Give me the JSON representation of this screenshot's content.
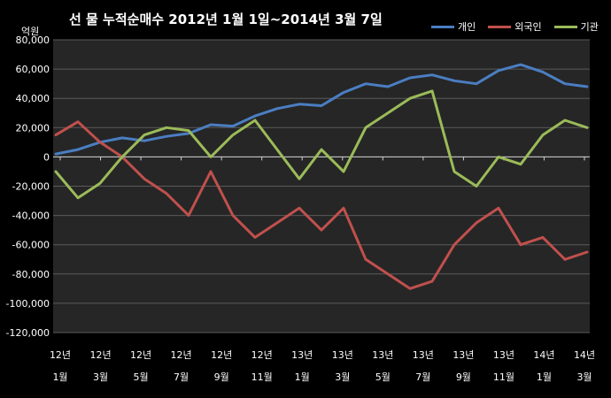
{
  "chart_data": {
    "type": "line",
    "title": "선 물 누적순매수 2012년 1월 1일~2014년 3월 7일",
    "unit_label": "억원",
    "ylim": [
      -120000,
      80000
    ],
    "y_ticks": [
      "80,000",
      "60,000",
      "40,000",
      "20,000",
      "0",
      "-20,000",
      "-40,000",
      "-60,000",
      "-80,000",
      "-100,000",
      "-120,000"
    ],
    "x_ticks": [
      {
        "year": "12년",
        "month": "1월"
      },
      {
        "year": "12년",
        "month": "3월"
      },
      {
        "year": "12년",
        "month": "5월"
      },
      {
        "year": "12년",
        "month": "7월"
      },
      {
        "year": "12년",
        "month": "9월"
      },
      {
        "year": "12년",
        "month": "11월"
      },
      {
        "year": "13년",
        "month": "1월"
      },
      {
        "year": "13년",
        "month": "3월"
      },
      {
        "year": "13년",
        "month": "5월"
      },
      {
        "year": "13년",
        "month": "7월"
      },
      {
        "year": "13년",
        "month": "9월"
      },
      {
        "year": "13년",
        "month": "11월"
      },
      {
        "year": "14년",
        "month": "1월"
      },
      {
        "year": "14년",
        "month": "3월"
      }
    ],
    "grid": true,
    "legend_position": "top-right",
    "series": [
      {
        "name": "개인",
        "color": "#4a7ec2",
        "values": [
          2000,
          5000,
          10000,
          13000,
          11000,
          14000,
          16000,
          22000,
          21000,
          28000,
          33000,
          36000,
          35000,
          44000,
          50000,
          48000,
          54000,
          56000,
          52000,
          50000,
          59000,
          63000,
          58000,
          50000,
          48000
        ]
      },
      {
        "name": "외국인",
        "color": "#c0504d",
        "values": [
          15000,
          24000,
          10000,
          0,
          -15000,
          -25000,
          -40000,
          -10000,
          -40000,
          -55000,
          -45000,
          -35000,
          -50000,
          -35000,
          -70000,
          -80000,
          -90000,
          -85000,
          -60000,
          -45000,
          -35000,
          -60000,
          -55000,
          -70000,
          -65000
        ]
      },
      {
        "name": "기관",
        "color": "#9bbb59",
        "values": [
          -10000,
          -28000,
          -18000,
          0,
          15000,
          20000,
          18000,
          0,
          15000,
          25000,
          5000,
          -15000,
          5000,
          -10000,
          20000,
          30000,
          40000,
          45000,
          -10000,
          -20000,
          0,
          -5000,
          15000,
          25000,
          20000
        ]
      }
    ]
  }
}
